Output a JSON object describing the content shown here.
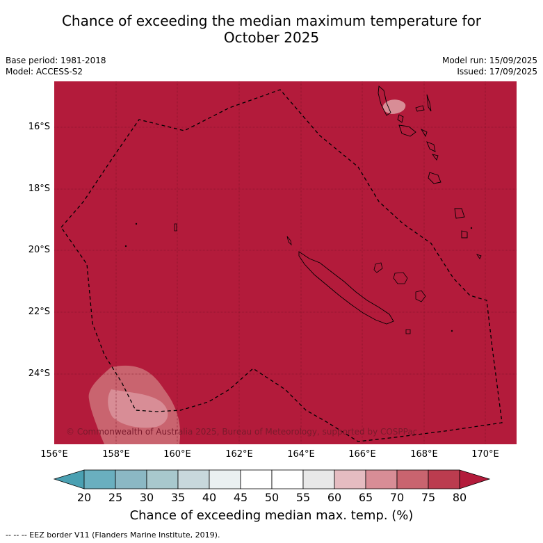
{
  "title_line1": "Chance of exceeding the median maximum temperature for",
  "title_line2": "October 2025",
  "meta_left": [
    "Base period: 1981-2018",
    "Model: ACCESS-S2"
  ],
  "meta_right": [
    "Model run: 15/09/2025",
    "Issued: 17/09/2025"
  ],
  "copyright": "© Commonwealth of Australia 2025, Bureau of Meteorology, supported by COSPPac",
  "map": {
    "lon_ticks": [
      "156°E",
      "158°E",
      "160°E",
      "162°E",
      "164°E",
      "166°E",
      "168°E",
      "170°E"
    ],
    "lat_ticks": [
      "16°S",
      "18°S",
      "20°S",
      "22°S",
      "24°S"
    ],
    "background_color": "#b31b3b",
    "coast_color": "#000000",
    "eez_style": "dashed"
  },
  "colorbar": {
    "labels": [
      "20",
      "25",
      "30",
      "35",
      "40",
      "45",
      "50",
      "55",
      "60",
      "65",
      "70",
      "75",
      "80"
    ],
    "colors": [
      "#6aafbf",
      "#8bb8c4",
      "#a8c8cd",
      "#c8d8dc",
      "#eaf0f1",
      "#ffffff",
      "#ffffff",
      "#e8e8e8",
      "#e5bcc1",
      "#d88d96",
      "#c9646f",
      "#bb3c4f"
    ],
    "under_color": "#4aa0b2",
    "over_color": "#b31b3b",
    "title": "Chance of exceeding median max. temp. (%)"
  },
  "footer": "--  --  -- EEZ border V11 (Flanders Marine Institute, 2019)."
}
